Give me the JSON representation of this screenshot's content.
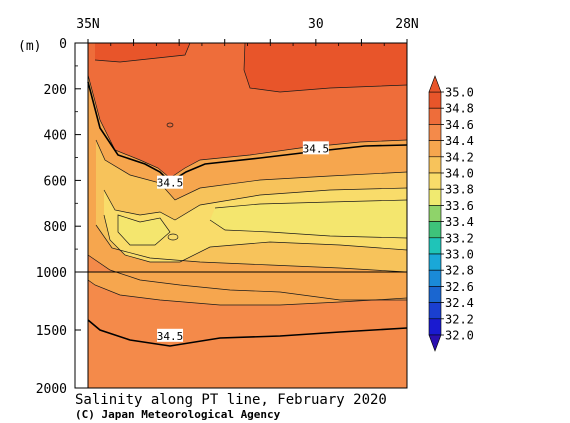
{
  "chart_data": {
    "type": "contour",
    "title": "Salinity along PT line, February 2020",
    "credit": "(C) Japan Meteorological Agency",
    "x_axis": {
      "ticks": [
        {
          "label": "35N",
          "lat": 35
        },
        {
          "label": "30",
          "lat": 30
        },
        {
          "label": "28N",
          "lat": 28
        }
      ],
      "range": [
        35,
        28
      ]
    },
    "y_axis": {
      "unit_label": "(m)",
      "upper_ticks": [
        0,
        200,
        400,
        600,
        800,
        1000
      ],
      "lower_ticks": [
        1500,
        2000
      ],
      "upper_range": [
        0,
        1000
      ],
      "lower_range": [
        1000,
        2000
      ],
      "reversed": true
    },
    "contour_labels": [
      {
        "text": "34.5",
        "lat": 33.2,
        "depth": 610
      },
      {
        "text": "34.5",
        "lat": 30.0,
        "depth": 460
      },
      {
        "text": "34.5",
        "lat": 33.2,
        "depth": 1550
      }
    ],
    "colorbar": {
      "levels": [
        "35.0",
        "34.8",
        "34.6",
        "34.4",
        "34.2",
        "34.0",
        "33.8",
        "33.6",
        "33.4",
        "33.2",
        "33.0",
        "32.8",
        "32.6",
        "32.4",
        "32.2",
        "32.0"
      ],
      "colors": [
        "#e8552a",
        "#ee6d3a",
        "#f48a4a",
        "#f6a64e",
        "#f7c35b",
        "#f9dc6a",
        "#f0ea70",
        "#8fd36a",
        "#3ec37a",
        "#1fc4b8",
        "#1aa8d8",
        "#1a8ad8",
        "#1a66d0",
        "#1a3fd0",
        "#1a1ad0"
      ]
    }
  }
}
